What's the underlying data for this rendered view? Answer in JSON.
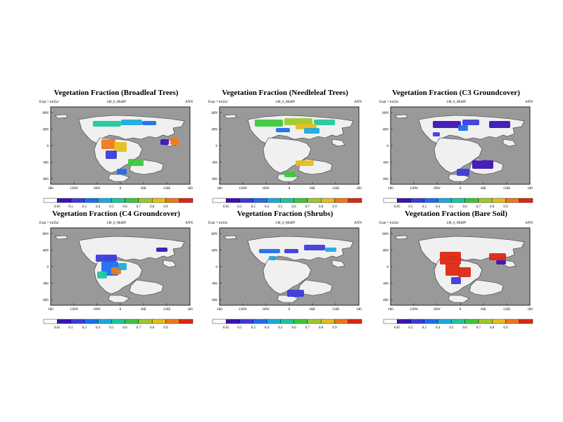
{
  "colors": {
    "ocean": "#999999",
    "land": "#f0f0f0",
    "scale": [
      "#ffffff",
      "#3c14b4",
      "#3c3cdc",
      "#1e6ef0",
      "#1eaadc",
      "#1ec8a0",
      "#3cc83c",
      "#a0c832",
      "#e6be1e",
      "#f0781e",
      "#dc2814"
    ]
  },
  "shared": {
    "experiment": "Expt = trnZal",
    "run": "148_6_MnRP",
    "period": "ANN"
  },
  "axes": {
    "lat_labels": [
      "80N",
      "40N",
      "0",
      "40S",
      "80S"
    ],
    "lon_labels": [
      "180",
      "120W",
      "60W",
      "0",
      "60E",
      "120E",
      "180"
    ]
  },
  "colorbar_ticks": [
    "0.05",
    "0.1",
    "0.2",
    "0.4",
    "0.5",
    "0.6",
    "0.7",
    "0.8",
    "0.9"
  ],
  "panels": [
    {
      "title": "Vegetation Fraction (Broadleaf Trees)",
      "colorbar_first": "0.05"
    },
    {
      "title": "Vegetation Fraction (Needleleaf Trees)",
      "colorbar_first": "0.05"
    },
    {
      "title": "Vegetation Fraction (C3 Groundcover)",
      "colorbar_first": "0.05"
    },
    {
      "title": "Vegetation Fraction (C4 Groundcover)",
      "colorbar_first": "0.05"
    },
    {
      "title": "Vegetation Fraction (Shrubs)",
      "colorbar_first": "0.05"
    },
    {
      "title": "Vegetation Fraction (Bare Soil)",
      "colorbar_first": "0.05"
    }
  ]
}
